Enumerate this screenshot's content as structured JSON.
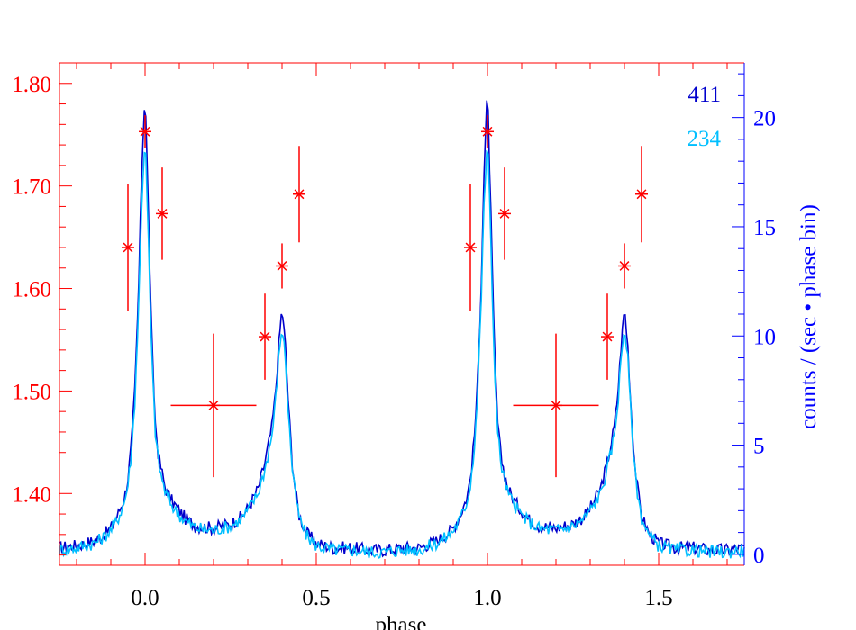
{
  "chart_data": {
    "type": "line",
    "xlabel": "phase",
    "ylabel_right": "counts / (sec • phase bin)",
    "ylabel_left": "",
    "xlim": [
      -0.25,
      1.75
    ],
    "ylim_left": [
      1.33,
      1.82
    ],
    "ylim_right": [
      -0.5,
      22.5
    ],
    "x_ticks": [
      0.0,
      0.5,
      1.0,
      1.5
    ],
    "x_tick_labels": [
      "0.0",
      "0.5",
      "1.0",
      "1.5"
    ],
    "y_left_ticks": [
      1.4,
      1.5,
      1.6,
      1.7,
      1.8
    ],
    "y_left_tick_labels": [
      "1.40",
      "1.50",
      "1.60",
      "1.70",
      "1.80"
    ],
    "y_right_ticks": [
      0,
      5,
      10,
      15,
      20
    ],
    "y_right_tick_labels": [
      "0",
      "5",
      "10",
      "15",
      "20"
    ],
    "legend_position": "top-right",
    "series": [
      {
        "name": "411",
        "axis": "right",
        "color": "#0000cc",
        "x": [
          -0.25,
          -0.2,
          -0.15,
          -0.12,
          -0.1,
          -0.08,
          -0.06,
          -0.05,
          -0.04,
          -0.03,
          -0.02,
          -0.01,
          0.0,
          0.01,
          0.02,
          0.03,
          0.04,
          0.05,
          0.06,
          0.08,
          0.1,
          0.12,
          0.15,
          0.2,
          0.25,
          0.28,
          0.3,
          0.33,
          0.35,
          0.37,
          0.38,
          0.39,
          0.4,
          0.41,
          0.42,
          0.43,
          0.44,
          0.45,
          0.47,
          0.5,
          0.55,
          0.6,
          0.65,
          0.7,
          0.75,
          0.8,
          0.85,
          0.88,
          0.9,
          0.92,
          0.94,
          0.95,
          0.96,
          0.97,
          0.98,
          0.99,
          1.0,
          1.01,
          1.02,
          1.03,
          1.04,
          1.05,
          1.06,
          1.08,
          1.1,
          1.12,
          1.15,
          1.2,
          1.25,
          1.28,
          1.3,
          1.33,
          1.35,
          1.37,
          1.38,
          1.39,
          1.4,
          1.41,
          1.42,
          1.43,
          1.44,
          1.45,
          1.47,
          1.5,
          1.55,
          1.6,
          1.65,
          1.7,
          1.75
        ],
        "y": [
          0.3,
          0.4,
          0.6,
          0.9,
          1.2,
          1.8,
          2.6,
          3.5,
          5.0,
          7.5,
          11.5,
          17.5,
          21.3,
          15.5,
          9.5,
          6.0,
          4.4,
          3.7,
          3.0,
          2.4,
          2.0,
          1.6,
          1.3,
          1.2,
          1.4,
          1.7,
          2.1,
          3.0,
          4.2,
          5.8,
          7.2,
          9.5,
          11.3,
          9.5,
          6.5,
          4.2,
          2.8,
          1.8,
          1.0,
          0.5,
          0.3,
          0.3,
          0.2,
          0.2,
          0.3,
          0.3,
          0.6,
          0.9,
          1.2,
          1.8,
          2.6,
          3.5,
          5.0,
          7.5,
          11.5,
          17.5,
          21.3,
          15.5,
          9.5,
          6.0,
          4.4,
          3.7,
          3.0,
          2.4,
          2.0,
          1.6,
          1.3,
          1.2,
          1.4,
          1.7,
          2.1,
          3.0,
          4.2,
          5.8,
          7.2,
          9.5,
          11.3,
          9.5,
          6.5,
          4.2,
          2.8,
          1.8,
          1.0,
          0.5,
          0.3,
          0.3,
          0.2,
          0.2,
          0.3
        ]
      },
      {
        "name": "234",
        "axis": "right",
        "color": "#00bfff",
        "x": [
          -0.25,
          -0.2,
          -0.15,
          -0.12,
          -0.1,
          -0.08,
          -0.06,
          -0.05,
          -0.04,
          -0.03,
          -0.02,
          -0.01,
          0.0,
          0.01,
          0.02,
          0.03,
          0.04,
          0.05,
          0.06,
          0.08,
          0.1,
          0.12,
          0.15,
          0.2,
          0.25,
          0.28,
          0.3,
          0.33,
          0.35,
          0.37,
          0.38,
          0.39,
          0.4,
          0.41,
          0.42,
          0.43,
          0.44,
          0.45,
          0.47,
          0.5,
          0.55,
          0.6,
          0.65,
          0.7,
          0.75,
          0.8,
          0.85,
          0.88,
          0.9,
          0.92,
          0.94,
          0.95,
          0.96,
          0.97,
          0.98,
          0.99,
          1.0,
          1.01,
          1.02,
          1.03,
          1.04,
          1.05,
          1.06,
          1.08,
          1.1,
          1.12,
          1.15,
          1.2,
          1.25,
          1.28,
          1.3,
          1.33,
          1.35,
          1.37,
          1.38,
          1.39,
          1.4,
          1.41,
          1.42,
          1.43,
          1.44,
          1.45,
          1.47,
          1.5,
          1.55,
          1.6,
          1.65,
          1.7,
          1.75
        ],
        "y": [
          0.2,
          0.3,
          0.5,
          0.8,
          1.1,
          1.6,
          2.4,
          3.2,
          4.6,
          7.0,
          10.8,
          16.0,
          19.2,
          14.2,
          8.8,
          5.6,
          4.1,
          3.4,
          2.8,
          2.2,
          1.8,
          1.5,
          1.2,
          1.1,
          1.3,
          1.6,
          2.0,
          2.8,
          3.9,
          5.4,
          6.8,
          8.9,
          10.5,
          8.9,
          6.1,
          3.9,
          2.6,
          1.7,
          0.9,
          0.4,
          0.2,
          0.2,
          0.1,
          0.1,
          0.2,
          0.2,
          0.5,
          0.8,
          1.1,
          1.6,
          2.4,
          3.2,
          4.6,
          7.0,
          10.8,
          16.0,
          19.2,
          14.2,
          8.8,
          5.6,
          4.1,
          3.4,
          2.8,
          2.2,
          1.8,
          1.5,
          1.2,
          1.1,
          1.3,
          1.6,
          2.0,
          2.8,
          3.9,
          5.4,
          6.8,
          8.9,
          10.5,
          8.9,
          6.1,
          3.9,
          2.6,
          1.7,
          0.9,
          0.4,
          0.2,
          0.2,
          0.1,
          0.1,
          0.2
        ]
      }
    ],
    "points": {
      "axis": "left",
      "color": "#ff0000",
      "data": [
        {
          "x": -0.05,
          "y": 1.64,
          "xerr": 0.0,
          "yerr_lo": 0.062,
          "yerr_hi": 0.062
        },
        {
          "x": 0.0,
          "y": 1.753,
          "xerr": 0.0,
          "yerr_lo": 0.016,
          "yerr_hi": 0.016
        },
        {
          "x": 0.05,
          "y": 1.673,
          "xerr": 0.0,
          "yerr_lo": 0.045,
          "yerr_hi": 0.045
        },
        {
          "x": 0.2,
          "y": 1.486,
          "xerr": 0.125,
          "yerr_lo": 0.07,
          "yerr_hi": 0.07
        },
        {
          "x": 0.35,
          "y": 1.553,
          "xerr": 0.0,
          "yerr_lo": 0.042,
          "yerr_hi": 0.042
        },
        {
          "x": 0.4,
          "y": 1.622,
          "xerr": 0.0,
          "yerr_lo": 0.022,
          "yerr_hi": 0.022
        },
        {
          "x": 0.45,
          "y": 1.692,
          "xerr": 0.0,
          "yerr_lo": 0.047,
          "yerr_hi": 0.047
        },
        {
          "x": 0.95,
          "y": 1.64,
          "xerr": 0.0,
          "yerr_lo": 0.062,
          "yerr_hi": 0.062
        },
        {
          "x": 1.0,
          "y": 1.753,
          "xerr": 0.0,
          "yerr_lo": 0.016,
          "yerr_hi": 0.016
        },
        {
          "x": 1.05,
          "y": 1.673,
          "xerr": 0.0,
          "yerr_lo": 0.045,
          "yerr_hi": 0.045
        },
        {
          "x": 1.2,
          "y": 1.486,
          "xerr": 0.125,
          "yerr_lo": 0.07,
          "yerr_hi": 0.07
        },
        {
          "x": 1.35,
          "y": 1.553,
          "xerr": 0.0,
          "yerr_lo": 0.042,
          "yerr_hi": 0.042
        },
        {
          "x": 1.4,
          "y": 1.622,
          "xerr": 0.0,
          "yerr_lo": 0.022,
          "yerr_hi": 0.022
        },
        {
          "x": 1.45,
          "y": 1.692,
          "xerr": 0.0,
          "yerr_lo": 0.047,
          "yerr_hi": 0.047
        }
      ]
    },
    "colors": {
      "left_axis": "#ff0000",
      "right_axis": "#0000ff",
      "frame": "#ff0000"
    },
    "grid": false
  }
}
